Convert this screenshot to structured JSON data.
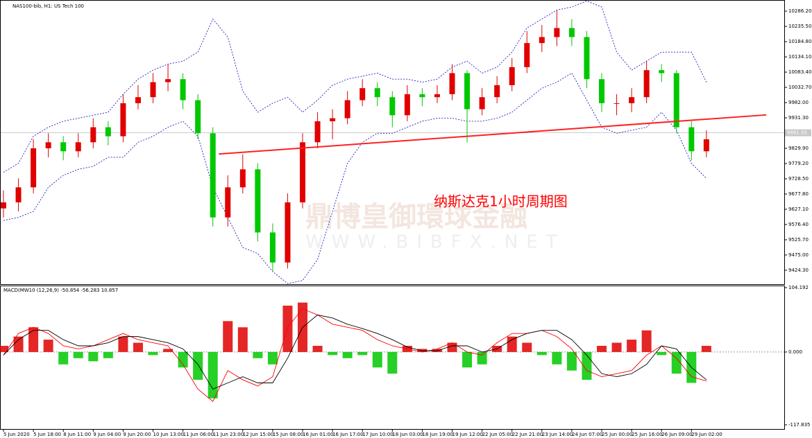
{
  "chart_data": {
    "type": "candlestick",
    "title": "NAS100-bib, H1:  US Tech 100",
    "annotation": "纳斯达克1小时周期图",
    "watermark": "鼎博皇御環球金融",
    "watermark_url": "WWW.BIBFX.NET",
    "categories": [
      "5 Jun 2020",
      null,
      "5 Jun 18:00",
      null,
      "8 Jun 11:00",
      null,
      "9 Jun 04:00",
      null,
      "9 Jun 20:00",
      null,
      "10 Jun 13:00",
      null,
      "11 Jun 06:00",
      null,
      "11 Jun 23:00",
      null,
      "12 Jun 15:00",
      null,
      "15 Jun 08:00",
      null,
      "16 Jun 01:00",
      null,
      "16 Jun 17:00",
      null,
      "17 Jun 10:00",
      null,
      "18 Jun 03:00",
      null,
      "18 Jun 19:00",
      null,
      "19 Jun 12:00",
      null,
      "22 Jun 05:00",
      null,
      "22 Jun 21:00",
      null,
      "23 Jun 14:00",
      null,
      "24 Jun 07:00",
      null,
      "25 Jun 00:00",
      null,
      "25 Jun 16:00",
      null,
      "26 Jun 09:00",
      null,
      "29 Jun 02:00",
      null
    ],
    "open": [
      9630,
      9650,
      9700,
      9830,
      9850,
      9820,
      9850,
      9900,
      9870,
      9980,
      10000,
      10050,
      10060,
      9990,
      9880,
      9600,
      9700,
      9760,
      9550,
      9450,
      9650,
      9850,
      9920,
      9930,
      9990,
      10030,
      10000,
      9940,
      10010,
      10000,
      10010,
      10080,
      9960,
      10000,
      10040,
      10100,
      10180,
      10200,
      10230,
      10200,
      10060,
      9980,
      9980,
      10000,
      10090,
      10080,
      9900,
      9820
    ],
    "high": [
      9690,
      9730,
      9860,
      9880,
      9870,
      9880,
      9930,
      9920,
      10010,
      10040,
      10080,
      10110,
      10080,
      10010,
      9900,
      9740,
      9810,
      9780,
      9580,
      9680,
      9880,
      9950,
      9960,
      10020,
      10060,
      10050,
      10020,
      10040,
      10030,
      10040,
      10110,
      10090,
      10030,
      10070,
      10130,
      10220,
      10240,
      10290,
      10260,
      10220,
      10080,
      10010,
      10030,
      10120,
      10110,
      10090,
      9920,
      9890
    ],
    "low": [
      9600,
      9620,
      9680,
      9800,
      9790,
      9800,
      9830,
      9840,
      9850,
      9960,
      9980,
      10020,
      9960,
      9860,
      9570,
      9570,
      9680,
      9520,
      9420,
      9430,
      9630,
      9830,
      9860,
      9910,
      9970,
      9970,
      9900,
      9920,
      9970,
      9980,
      9990,
      9850,
      9940,
      9980,
      10020,
      10080,
      10150,
      10170,
      10170,
      10030,
      9950,
      9940,
      9950,
      9980,
      10050,
      9880,
      9790,
      9800
    ],
    "close": [
      9650,
      9700,
      9830,
      9850,
      9820,
      9850,
      9900,
      9870,
      9980,
      10000,
      10050,
      10060,
      9990,
      9880,
      9600,
      9700,
      9760,
      9550,
      9450,
      9650,
      9850,
      9920,
      9930,
      9990,
      10030,
      10000,
      9940,
      10010,
      10000,
      10010,
      10080,
      9960,
      10000,
      10040,
      10100,
      10180,
      10200,
      10230,
      10200,
      10060,
      9980,
      9980,
      10000,
      10090,
      10080,
      9900,
      9820,
      9860
    ],
    "up_color": "#e00000",
    "down_color": "#00c800",
    "bands": {
      "color": "#2020c0",
      "upper": [
        9750,
        9780,
        9870,
        9900,
        9920,
        9930,
        9940,
        9950,
        10010,
        10060,
        10090,
        10110,
        10120,
        10150,
        10260,
        10200,
        10020,
        9950,
        9980,
        10000,
        9950,
        9990,
        10040,
        10060,
        10070,
        10080,
        10060,
        10060,
        10050,
        10060,
        10100,
        10120,
        10080,
        10100,
        10150,
        10230,
        10260,
        10290,
        10300,
        10320,
        10300,
        10150,
        10090,
        10120,
        10150,
        10150,
        10150,
        10050
      ],
      "lower": [
        9590,
        9600,
        9620,
        9700,
        9740,
        9760,
        9770,
        9800,
        9800,
        9850,
        9870,
        9900,
        9920,
        9870,
        9700,
        9600,
        9500,
        9480,
        9420,
        9380,
        9390,
        9460,
        9620,
        9780,
        9850,
        9880,
        9880,
        9900,
        9920,
        9930,
        9930,
        9920,
        9920,
        9930,
        9950,
        9990,
        10030,
        10050,
        10080,
        9990,
        9900,
        9880,
        9890,
        9900,
        9950,
        9890,
        9780,
        9730
      ]
    },
    "trend_line": {
      "x": [
        14.4,
        51
      ],
      "y": [
        9811,
        9941
      ],
      "color": "#ff2020"
    },
    "last_price": {
      "value": 9881.5,
      "label": "9881.50"
    },
    "ylim": [
      9378,
      10321
    ],
    "yticks": [
      {
        "value": 10286.2,
        "label": "10286.20"
      },
      {
        "value": 10235.5,
        "label": "10235.50"
      },
      {
        "value": 10184.8,
        "label": "10184.80"
      },
      {
        "value": 10134.1,
        "label": "10134.10"
      },
      {
        "value": 10083.4,
        "label": "10083.40"
      },
      {
        "value": 10032.7,
        "label": "10032.70"
      },
      {
        "value": 9982,
        "label": "9982.00"
      },
      {
        "value": 9931.3,
        "label": "9931.30"
      },
      {
        "value": 9829.9,
        "label": "9829.90"
      },
      {
        "value": 9779.2,
        "label": "9779.20"
      },
      {
        "value": 9728.5,
        "label": "9728.50"
      },
      {
        "value": 9677.8,
        "label": "9677.80"
      },
      {
        "value": 9627.1,
        "label": "9627.10"
      },
      {
        "value": 9576.4,
        "label": "9576.40"
      },
      {
        "value": 9525.7,
        "label": "9525.70"
      },
      {
        "value": 9475,
        "label": "9475.00"
      },
      {
        "value": 9424.3,
        "label": "9424.30"
      }
    ],
    "macd": {
      "label": "MACD(MW10 (12,26,9) -50.854 -56.283 10.857",
      "histogram": [
        10,
        25,
        40,
        20,
        -20,
        -10,
        -15,
        -10,
        25,
        15,
        -5,
        5,
        -25,
        -45,
        -75,
        50,
        40,
        -10,
        -20,
        75,
        80,
        10,
        -5,
        -10,
        -5,
        -25,
        -35,
        10,
        5,
        5,
        15,
        -25,
        -20,
        10,
        25,
        15,
        -5,
        -20,
        -30,
        -45,
        10,
        15,
        20,
        35,
        -5,
        -35,
        -50,
        10
      ],
      "line": [
        -5,
        30,
        40,
        30,
        10,
        5,
        10,
        20,
        30,
        20,
        15,
        10,
        -20,
        -60,
        -80,
        -30,
        -45,
        -55,
        -40,
        40,
        70,
        60,
        45,
        40,
        35,
        20,
        10,
        5,
        0,
        5,
        15,
        0,
        -5,
        15,
        30,
        30,
        35,
        25,
        5,
        -30,
        -40,
        -35,
        -30,
        -5,
        10,
        -10,
        -40,
        -47
      ],
      "signal": [
        -5,
        20,
        35,
        35,
        20,
        10,
        10,
        15,
        25,
        25,
        20,
        15,
        5,
        -20,
        -60,
        -50,
        -40,
        -50,
        -50,
        -10,
        40,
        60,
        55,
        45,
        38,
        30,
        20,
        8,
        2,
        2,
        10,
        10,
        0,
        5,
        20,
        30,
        35,
        35,
        20,
        -5,
        -35,
        -40,
        -35,
        -20,
        10,
        5,
        -25,
        -45
      ],
      "line_color": "#ff0000",
      "signal_color": "#000000",
      "ylim": [
        -117.835,
        104.192
      ],
      "yticks": [
        {
          "value": 104.192,
          "label": "104.192"
        },
        {
          "value": 0,
          "label": "0.000"
        },
        {
          "value": -117.835,
          "label": "-117.835"
        }
      ]
    }
  }
}
